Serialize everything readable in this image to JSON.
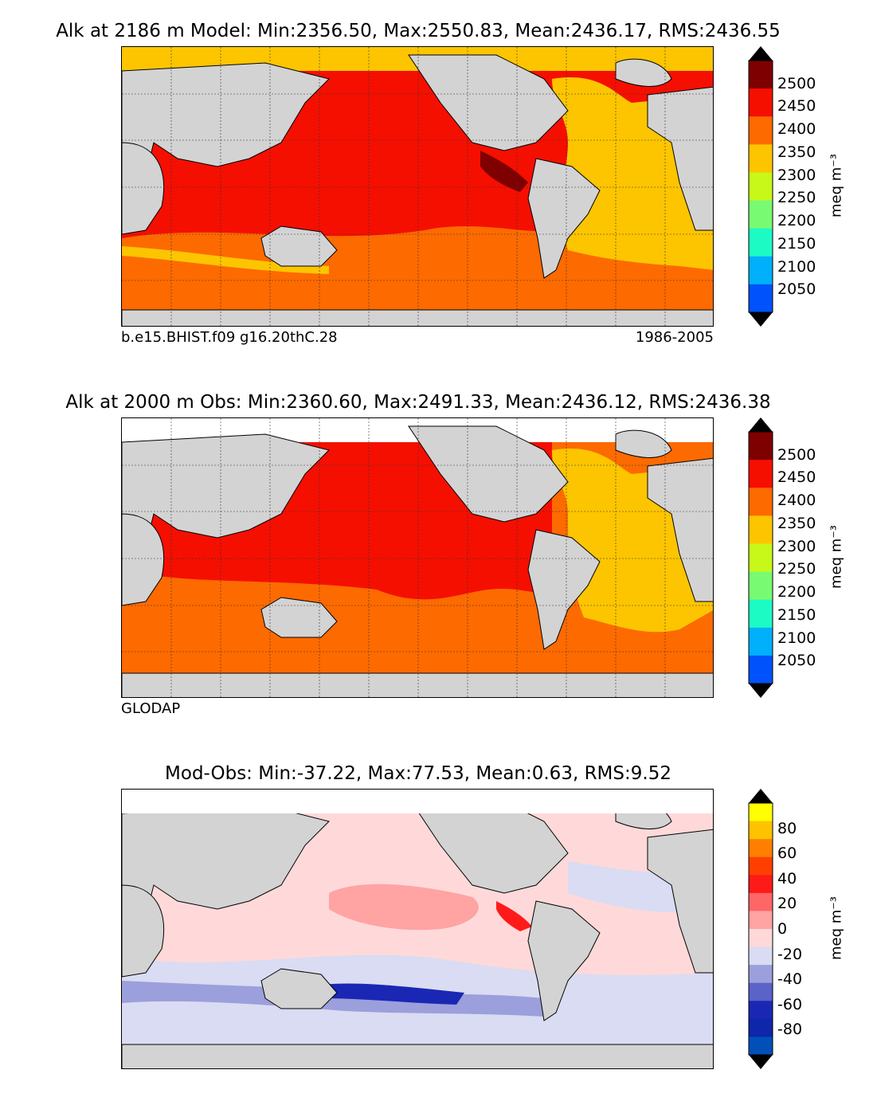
{
  "panels": [
    {
      "id": "model",
      "title": "Alk at 2186 m Model: Min:2356.50, Max:2550.83, Mean:2436.17, RMS:2436.55",
      "caption_left": "b.e15.BHIST.f09 g16.20thC.28",
      "caption_right": "1986-2005",
      "colorbar": {
        "unit": "meq m⁻³",
        "ticks": [
          "2500",
          "2450",
          "2400",
          "2350",
          "2300",
          "2250",
          "2200",
          "2150",
          "2100",
          "2050"
        ],
        "colors": [
          "#7f0000",
          "#f50f00",
          "#fd6a00",
          "#fdc500",
          "#c8f71a",
          "#78fb72",
          "#1dfbc5",
          "#00b0fb",
          "#0052fc",
          "#0000f0",
          "#00007e"
        ]
      }
    },
    {
      "id": "obs",
      "title": "Alk at 2000 m Obs: Min:2360.60, Max:2491.33, Mean:2436.12, RMS:2436.38",
      "caption_left": "GLODAP",
      "caption_right": "",
      "colorbar": {
        "unit": "meq m⁻³",
        "ticks": [
          "2500",
          "2450",
          "2400",
          "2350",
          "2300",
          "2250",
          "2200",
          "2150",
          "2100",
          "2050"
        ],
        "colors": [
          "#7f0000",
          "#f50f00",
          "#fd6a00",
          "#fdc500",
          "#c8f71a",
          "#78fb72",
          "#1dfbc5",
          "#00b0fb",
          "#0052fc",
          "#0000f0",
          "#00007e"
        ]
      }
    },
    {
      "id": "diff",
      "title": "Mod-Obs: Min:-37.22, Max:77.53, Mean:0.63, RMS:9.52",
      "caption_left": "",
      "caption_right": "",
      "colorbar": {
        "unit": "meq m⁻³",
        "ticks": [
          "80",
          "60",
          "40",
          "20",
          "0",
          "-20",
          "-40",
          "-60",
          "-80"
        ],
        "colors": [
          "#ffff00",
          "#ffc200",
          "#ff8000",
          "#ff3f00",
          "#ff1a1a",
          "#ff6666",
          "#ffa3a3",
          "#ffd9d9",
          "#d9dcf2",
          "#9b9fdb",
          "#5b62c8",
          "#1a27b4",
          "#0e26aa",
          "#0050b8",
          "#008ad0",
          "#00c4ea"
        ]
      }
    }
  ],
  "colors": {
    "land": "#d3d3d3",
    "nodata": "#ffffff"
  }
}
